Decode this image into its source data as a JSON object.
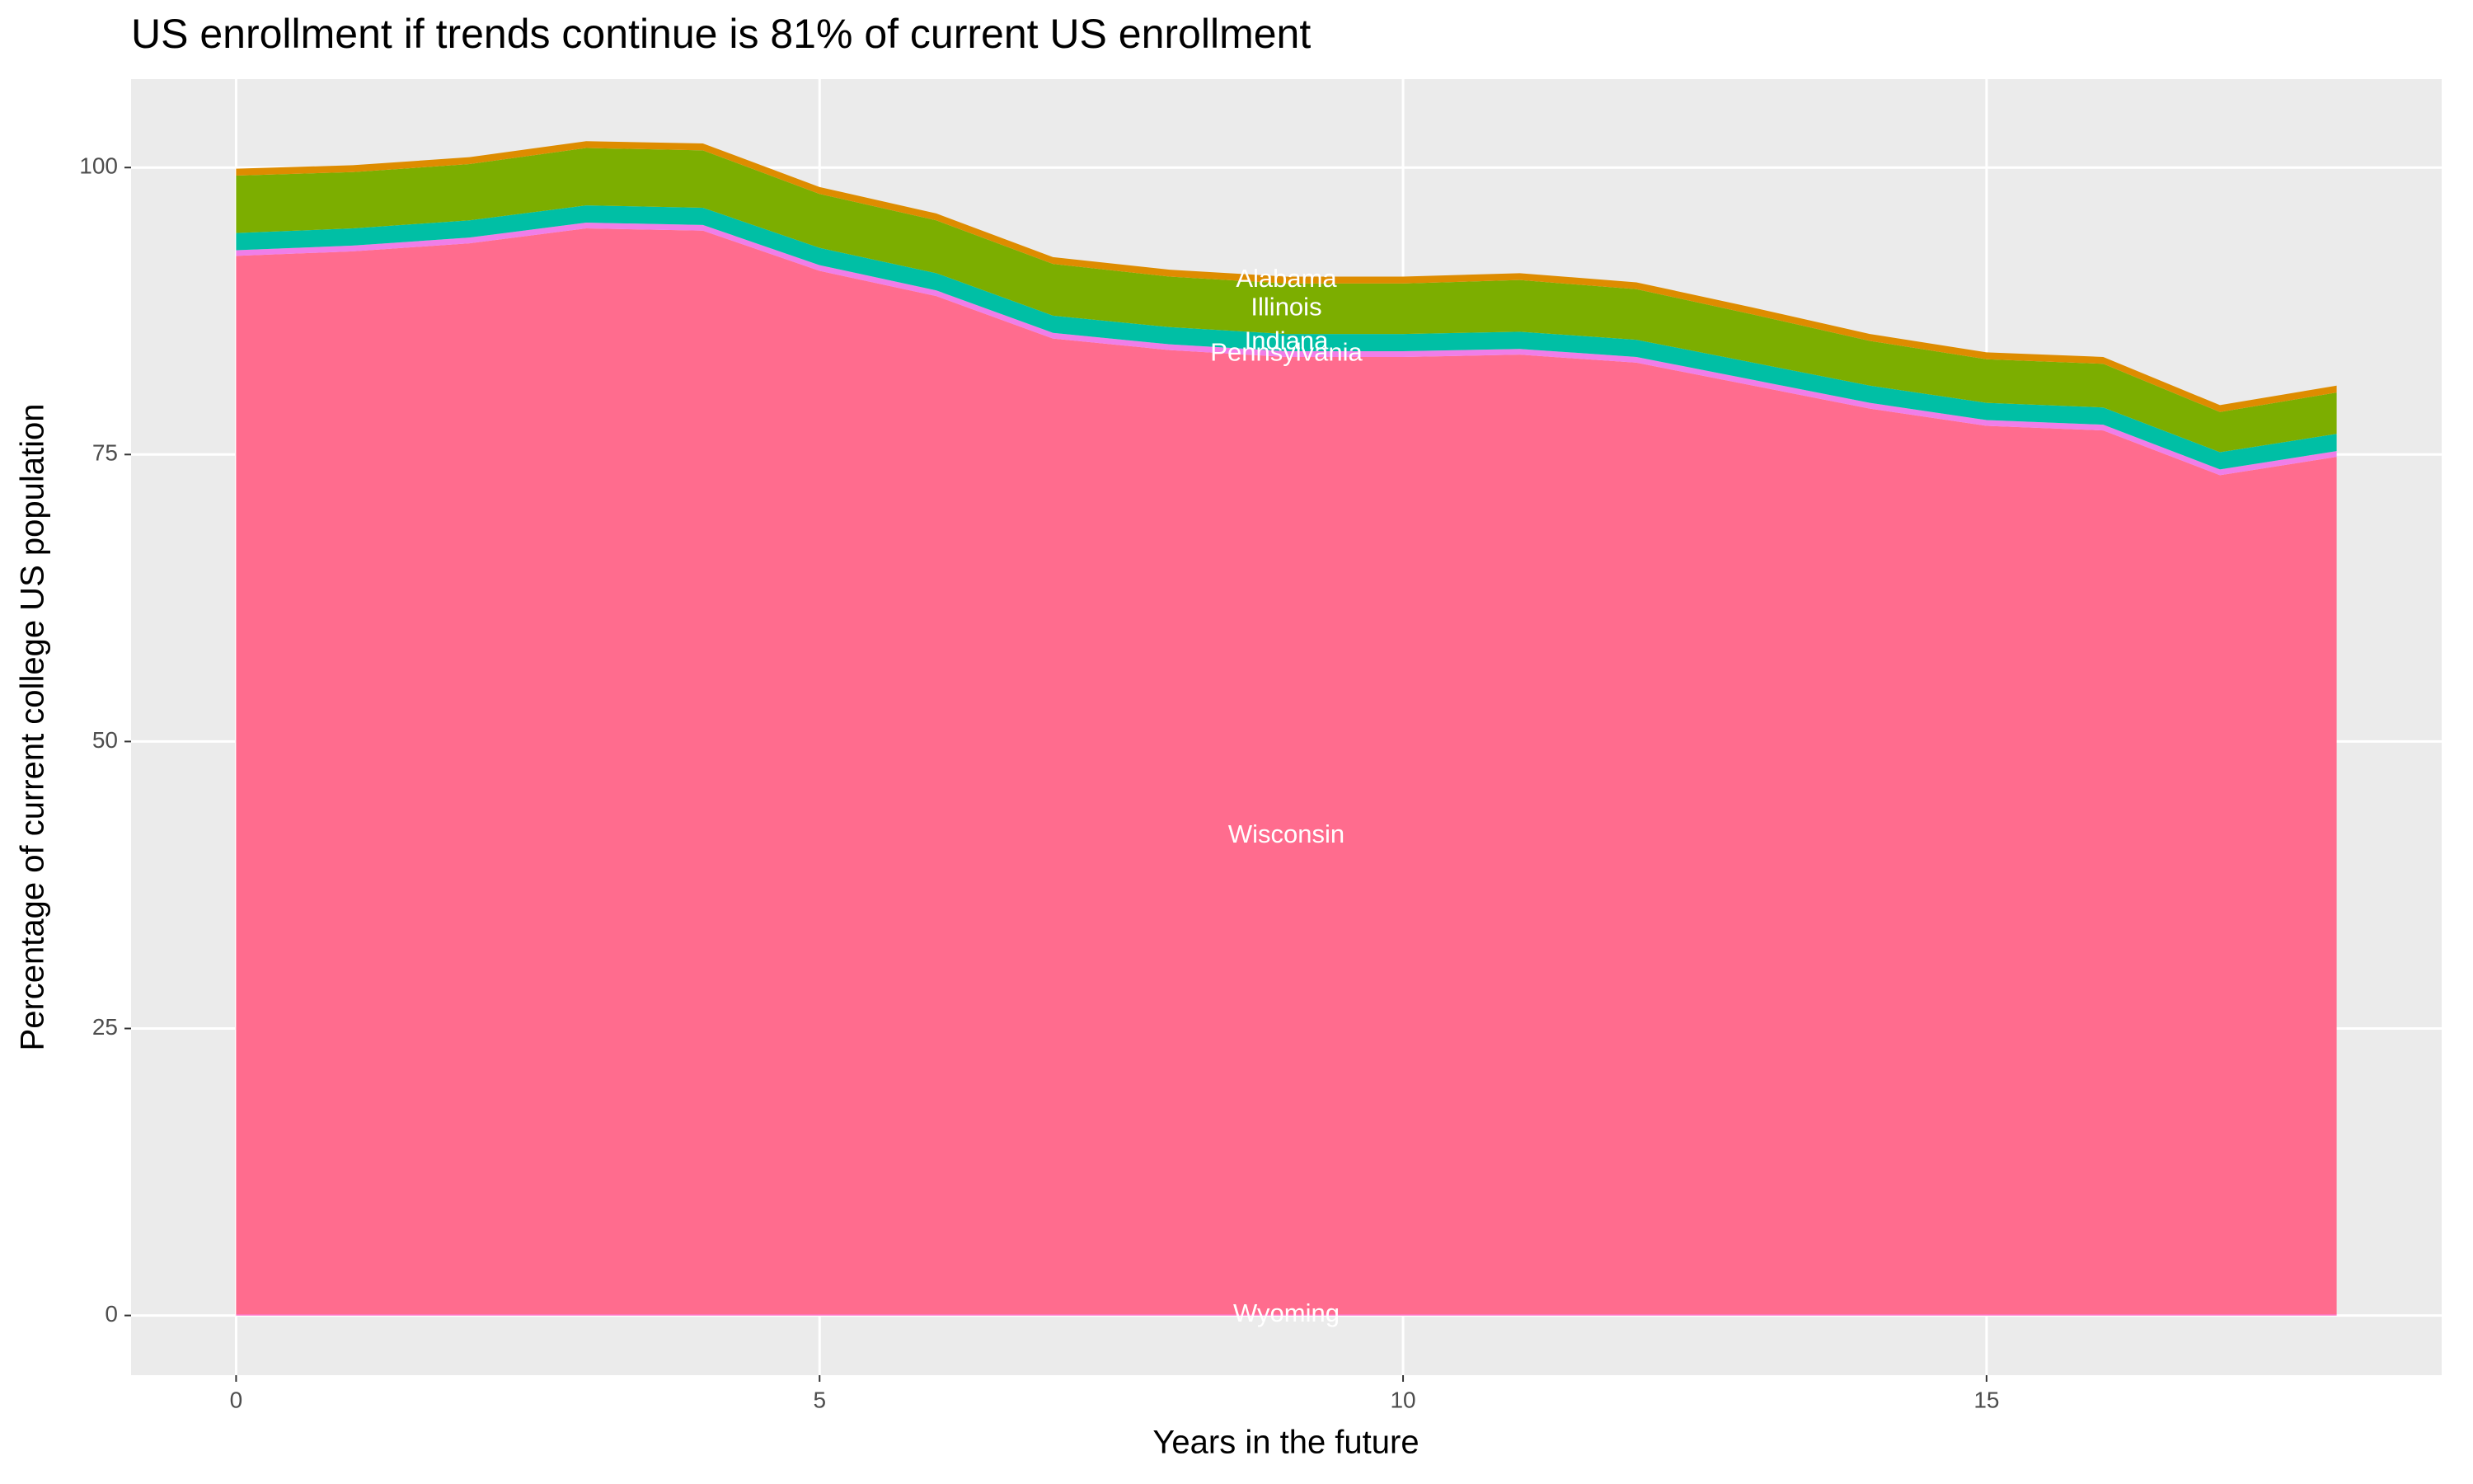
{
  "chart_data": {
    "type": "stacked_area",
    "title": "US enrollment if trends continue is 81% of current US enrollment",
    "x_label": "Years in the future",
    "y_label": "Percentage of current college US population",
    "x": [
      0,
      1,
      2,
      3,
      4,
      5,
      6,
      7,
      8,
      9,
      10,
      11,
      12,
      13,
      14,
      15,
      16,
      17,
      18
    ],
    "series": [
      {
        "name": "Wyoming",
        "color": "#ff61c3",
        "values": [
          0.1,
          0.1,
          0.1,
          0.1,
          0.1,
          0.1,
          0.1,
          0.1,
          0.1,
          0.1,
          0.1,
          0.1,
          0.1,
          0.1,
          0.1,
          0.1,
          0.1,
          0.1,
          0.1
        ]
      },
      {
        "name": "Wisconsin",
        "color": "#ff6c8e",
        "values": [
          92.2,
          92.6,
          93.3,
          94.6,
          94.4,
          90.9,
          88.7,
          85.0,
          84.0,
          83.4,
          83.4,
          83.6,
          82.9,
          80.9,
          78.9,
          77.4,
          77.0,
          73.1,
          74.7
        ]
      },
      {
        "name": "Pennsylvania",
        "color": "#f07ee8",
        "values": [
          0.5,
          0.5,
          0.5,
          0.5,
          0.5,
          0.5,
          0.5,
          0.5,
          0.5,
          0.5,
          0.5,
          0.5,
          0.5,
          0.5,
          0.5,
          0.5,
          0.5,
          0.5,
          0.5
        ]
      },
      {
        "name": "Indiana",
        "color": "#00bfa5",
        "values": [
          1.5,
          1.5,
          1.5,
          1.5,
          1.5,
          1.5,
          1.5,
          1.5,
          1.5,
          1.5,
          1.5,
          1.5,
          1.5,
          1.5,
          1.5,
          1.5,
          1.5,
          1.5,
          1.5
        ]
      },
      {
        "name": "Illinois",
        "color": "#7cae00",
        "values": [
          5.0,
          4.9,
          4.9,
          5.0,
          5.0,
          4.7,
          4.6,
          4.5,
          4.4,
          4.4,
          4.4,
          4.5,
          4.4,
          4.2,
          3.9,
          3.8,
          3.8,
          3.5,
          3.6
        ]
      },
      {
        "name": "Alabama",
        "color": "#de8c00",
        "values": [
          0.6,
          0.6,
          0.6,
          0.6,
          0.6,
          0.6,
          0.6,
          0.6,
          0.6,
          0.6,
          0.6,
          0.6,
          0.6,
          0.6,
          0.6,
          0.6,
          0.6,
          0.6,
          0.6
        ]
      }
    ],
    "xlim": [
      -0.9,
      18.9
    ],
    "xticks": [
      0,
      5,
      10,
      15
    ],
    "ylim": [
      -5.2,
      107.7
    ],
    "yticks": [
      0,
      25,
      50,
      75,
      100
    ],
    "grid": true
  }
}
